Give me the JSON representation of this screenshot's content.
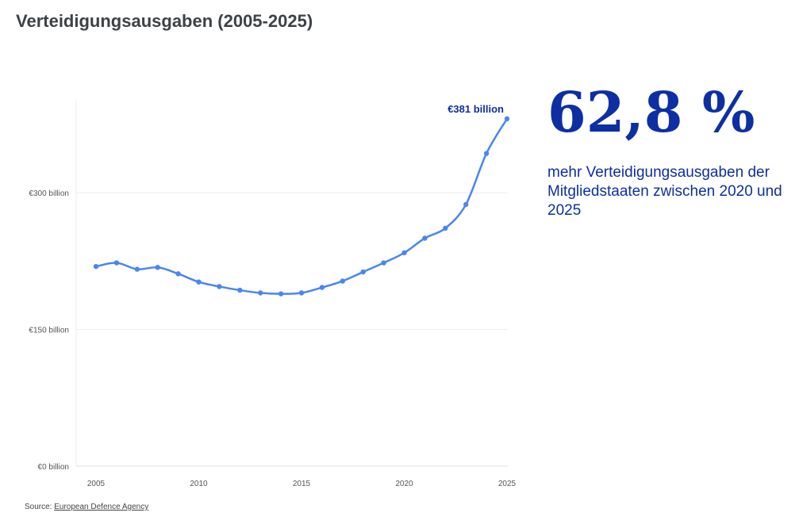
{
  "title": "Verteidigungsausgaben (2005-2025)",
  "highlight": {
    "value": "62,8 %",
    "text": "mehr Verteidigungsausgaben der Mitgliedstaaten zwischen 2020 und 2025"
  },
  "source": {
    "label": "Source:",
    "link": "European Defence Agency"
  },
  "chart_data": {
    "type": "line",
    "x": [
      2005,
      2006,
      2007,
      2008,
      2009,
      2010,
      2011,
      2012,
      2013,
      2014,
      2015,
      2016,
      2017,
      2018,
      2019,
      2020,
      2021,
      2022,
      2023,
      2024,
      2025
    ],
    "values": [
      219,
      223,
      216,
      218,
      211,
      202,
      197,
      193,
      190,
      189,
      190,
      196,
      203,
      213,
      223,
      234,
      250,
      261,
      287,
      343,
      381
    ],
    "xticks": [
      "2005",
      "2010",
      "2015",
      "2020",
      "2025"
    ],
    "yticks": [
      {
        "v": 0,
        "label": "€0 billion"
      },
      {
        "v": 150,
        "label": "€150 billion"
      },
      {
        "v": 300,
        "label": "€300 billion"
      }
    ],
    "ylim": [
      0,
      400
    ],
    "xlim": [
      2005,
      2025
    ],
    "annotation": "€381 billion",
    "grid": true,
    "color": "#4a86f0",
    "annotation_color": "#0d2fa3"
  }
}
